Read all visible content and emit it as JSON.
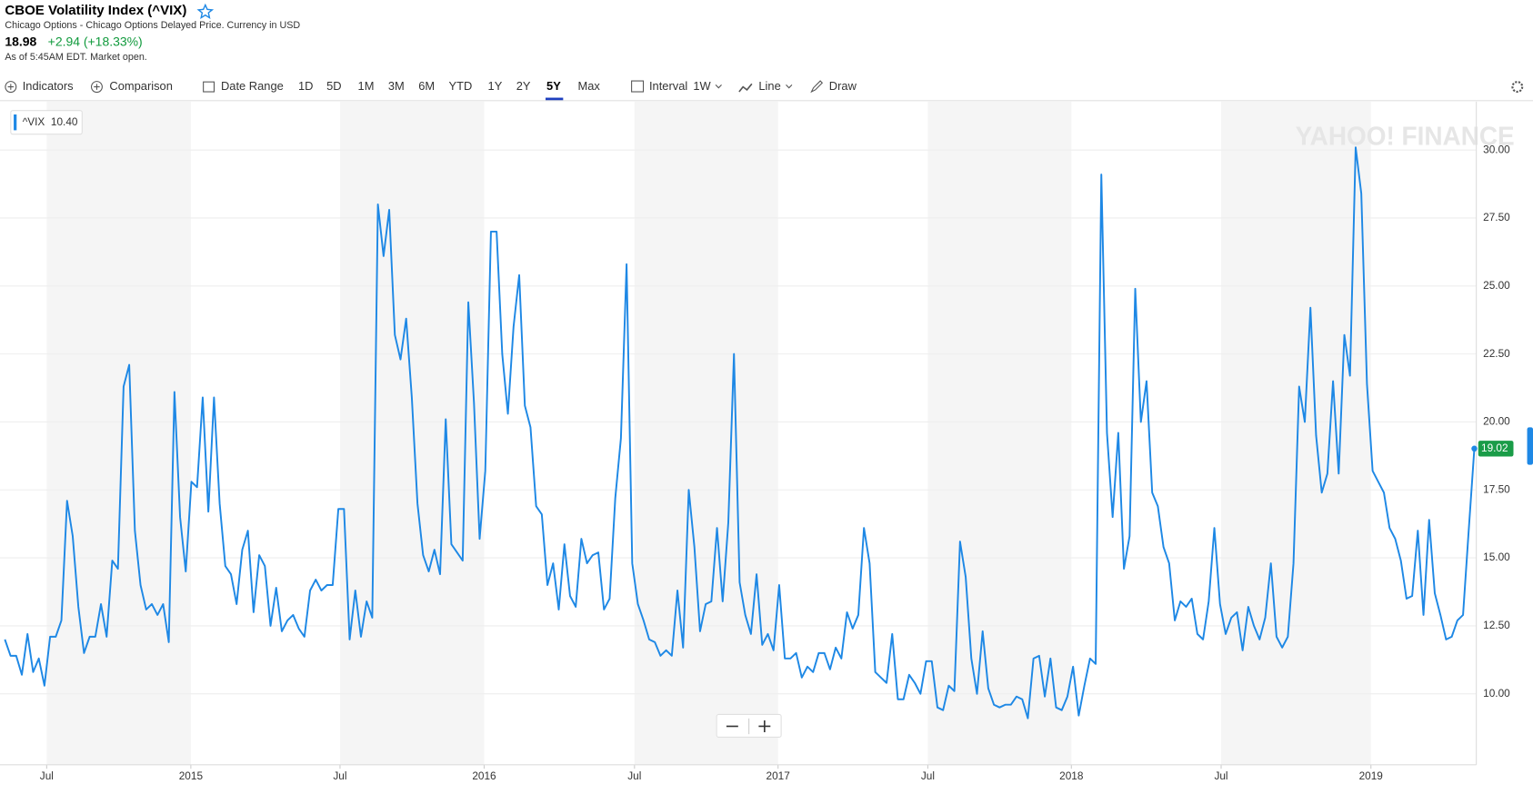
{
  "header": {
    "title": "CBOE Volatility Index (^VIX)",
    "subtitle": "Chicago Options - Chicago Options Delayed Price. Currency in USD",
    "price": "18.98",
    "change": "+2.94 (+18.33%)",
    "as_of": "As of 5:45AM EDT. Market open."
  },
  "toolbar": [
    "Indicators",
    "Comparison",
    "Date Range",
    "1D",
    "5D",
    "1M",
    "3M",
    "6M",
    "YTD",
    "1Y",
    "2Y",
    "5Y",
    "Max",
    "Interval",
    "1W",
    "Line",
    "Draw"
  ],
  "chart_data": {
    "type": "line",
    "watermark": "YAHOO! FINANCE",
    "hover_value": "10.40",
    "series": [
      {
        "name": "^VIX",
        "color": "#1e88e5",
        "values": [
          12.0,
          11.4,
          11.4,
          10.7,
          12.2,
          10.8,
          11.3,
          10.3,
          12.1,
          12.1,
          12.7,
          17.1,
          15.8,
          13.2,
          11.5,
          12.1,
          12.1,
          13.3,
          12.1,
          14.9,
          14.6,
          21.3,
          22.1,
          16.0,
          14.0,
          13.1,
          13.3,
          12.9,
          13.3,
          11.9,
          21.1,
          16.5,
          14.5,
          17.8,
          17.6,
          20.9,
          16.7,
          20.9,
          17.0,
          14.7,
          14.4,
          13.3,
          15.3,
          16.0,
          13.0,
          15.1,
          14.7,
          12.5,
          13.9,
          12.3,
          12.7,
          12.9,
          12.4,
          12.1,
          13.8,
          14.2,
          13.8,
          14.0,
          14.0,
          16.8,
          16.8,
          12.0,
          13.8,
          12.1,
          13.4,
          12.8,
          28.0,
          26.1,
          27.8,
          23.2,
          22.3,
          23.8,
          20.9,
          17.0,
          15.1,
          14.5,
          15.3,
          14.4,
          20.1,
          15.5,
          15.2,
          14.9,
          24.4,
          20.7,
          15.7,
          18.2,
          27.0,
          27.0,
          22.5,
          20.3,
          23.5,
          25.4,
          20.6,
          19.8,
          16.9,
          16.6,
          14.0,
          14.8,
          13.1,
          15.5,
          13.6,
          13.2,
          15.7,
          14.8,
          15.1,
          15.2,
          13.1,
          13.5,
          17.2,
          19.4,
          25.8,
          14.8,
          13.3,
          12.7,
          12.0,
          11.9,
          11.4,
          11.6,
          11.4,
          13.8,
          11.7,
          17.5,
          15.4,
          12.3,
          13.3,
          13.4,
          16.1,
          13.4,
          16.3,
          22.5,
          14.1,
          12.9,
          12.2,
          14.4,
          11.8,
          12.2,
          11.6,
          14.0,
          11.3,
          11.3,
          11.5,
          10.6,
          11.0,
          10.8,
          11.5,
          11.5,
          10.9,
          11.7,
          11.3,
          13.0,
          12.4,
          12.9,
          16.1,
          14.8,
          10.8,
          10.6,
          10.4,
          12.2,
          9.8,
          9.8,
          10.7,
          10.4,
          10.0,
          11.2,
          11.2,
          9.5,
          9.4,
          10.3,
          10.1,
          15.6,
          14.3,
          11.3,
          10.0,
          12.3,
          10.2,
          9.6,
          9.5,
          9.6,
          9.6,
          9.9,
          9.8,
          9.1,
          11.3,
          11.4,
          9.9,
          11.3,
          9.5,
          9.4,
          9.9,
          11.0,
          9.2,
          10.3,
          11.3,
          11.1,
          29.1,
          19.6,
          16.5,
          19.6,
          14.6,
          15.8,
          24.9,
          20.0,
          21.5,
          17.4,
          16.9,
          15.4,
          14.8,
          12.7,
          13.4,
          13.2,
          13.5,
          12.2,
          12.0,
          13.4,
          16.1,
          13.3,
          12.2,
          12.8,
          13.0,
          11.6,
          13.2,
          12.5,
          12.0,
          12.8,
          14.8,
          12.1,
          11.7,
          12.1,
          14.8,
          21.3,
          20.0,
          24.2,
          19.5,
          17.4,
          18.1,
          21.5,
          18.1,
          23.2,
          21.7,
          30.1,
          28.4,
          21.4,
          18.2,
          17.8,
          17.4,
          16.1,
          15.7,
          14.9,
          13.5,
          13.6,
          16.0,
          12.9,
          16.4,
          13.7,
          12.9,
          12.0,
          12.1,
          12.7,
          12.9,
          16.0,
          19.02
        ]
      }
    ],
    "xlim": [
      0,
      260
    ],
    "xticks": [
      {
        "value": 7.4,
        "label": "Jul"
      },
      {
        "value": 32.9,
        "label": "2015"
      },
      {
        "value": 59.3,
        "label": "Jul"
      },
      {
        "value": 84.8,
        "label": "2016"
      },
      {
        "value": 111.4,
        "label": "Jul"
      },
      {
        "value": 136.8,
        "label": "2017"
      },
      {
        "value": 163.3,
        "label": "Jul"
      },
      {
        "value": 188.7,
        "label": "2018"
      },
      {
        "value": 215.2,
        "label": "Jul"
      },
      {
        "value": 241.7,
        "label": "2019"
      }
    ],
    "ylim": [
      7.39,
      31.78
    ],
    "yticks": [
      {
        "value": 10,
        "label": "10.00"
      },
      {
        "value": 12.5,
        "label": "12.50"
      },
      {
        "value": 15,
        "label": "15.00"
      },
      {
        "value": 17.5,
        "label": "17.50"
      },
      {
        "value": 20,
        "label": "20.00"
      },
      {
        "value": 22.5,
        "label": "22.50"
      },
      {
        "value": 25,
        "label": "25.00"
      },
      {
        "value": 27.5,
        "label": "27.50"
      },
      {
        "value": 30,
        "label": "30.00"
      }
    ],
    "grid": true
  }
}
